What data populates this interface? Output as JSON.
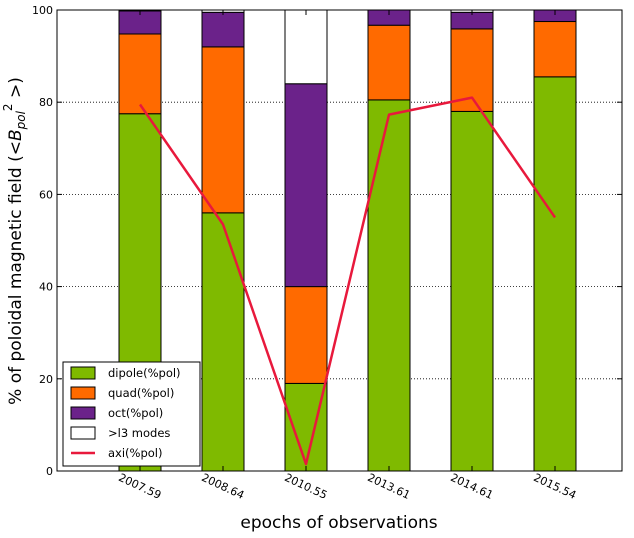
{
  "chart_data": {
    "type": "bar",
    "stacked": true,
    "categories": [
      "2007.59",
      "2008.64",
      "2010.55",
      "2013.61",
      "2014.61",
      "2015.54"
    ],
    "series": [
      {
        "name": "dipole(%pol)",
        "color": "#7fba00",
        "values": [
          77.5,
          56,
          19,
          80.5,
          78,
          85.5
        ]
      },
      {
        "name": "quad(%pol)",
        "color": "#ff6a00",
        "values": [
          17.3,
          36,
          21,
          16.2,
          17.9,
          12
        ]
      },
      {
        "name": "oct(%pol)",
        "color": "#6b228a",
        "values": [
          5,
          7.5,
          44,
          3.3,
          3.6,
          2.5
        ]
      },
      {
        "name": ">l3 modes",
        "color": "#ffffff",
        "values": [
          0.2,
          0.5,
          16,
          0,
          0.5,
          0
        ]
      }
    ],
    "line_series": {
      "name": "axi(%pol)",
      "color": "#e8193c",
      "values": [
        79.5,
        53.5,
        1.5,
        77.3,
        81,
        55
      ]
    },
    "ylabel_parts": [
      "% of poloidal magnetic field (",
      "<B",
      "pol",
      "2",
      " >)"
    ],
    "xlabel": "epochs of observations",
    "ylim": [
      0,
      100
    ],
    "yticks": [
      "0",
      "20",
      "40",
      "60",
      "80",
      "100"
    ],
    "grid": true,
    "legend_position": "lower-left"
  }
}
